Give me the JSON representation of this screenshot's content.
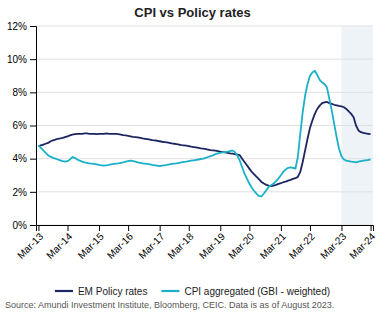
{
  "chart_data": {
    "type": "line",
    "title": "CPI vs Policy rates",
    "categories": [
      "Mar-13",
      null,
      null,
      null,
      null,
      null,
      null,
      null,
      null,
      null,
      null,
      null,
      "Mar-14",
      null,
      null,
      null,
      null,
      null,
      null,
      null,
      null,
      null,
      null,
      null,
      null,
      "Mar-15",
      null,
      null,
      null,
      null,
      null,
      null,
      null,
      null,
      null,
      null,
      null,
      "Mar-16",
      null,
      null,
      null,
      null,
      null,
      null,
      null,
      null,
      null,
      null,
      null,
      null,
      "Mar-17",
      null,
      null,
      null,
      null,
      null,
      null,
      null,
      null,
      null,
      null,
      null,
      "Mar-18",
      null,
      null,
      null,
      null,
      null,
      null,
      null,
      null,
      null,
      null,
      null,
      null,
      "Mar-19",
      null,
      null,
      null,
      null,
      null,
      null,
      null,
      null,
      null,
      null,
      null,
      "Mar-20",
      null,
      null,
      null,
      null,
      null,
      null,
      null,
      null,
      null,
      null,
      null,
      null,
      "Mar-21",
      null,
      null,
      null,
      null,
      null,
      null,
      null,
      null,
      null,
      null,
      null,
      "Mar-22",
      null,
      null,
      null,
      null,
      null,
      null,
      null,
      null,
      null,
      null,
      null,
      null,
      "Mar-23",
      null,
      null,
      null,
      null,
      null,
      null,
      null,
      null,
      null,
      null,
      null,
      "Mar-24"
    ],
    "series": [
      {
        "name": "EM Policy rates",
        "color": "#1c2461",
        "values": [
          4.75,
          4.8,
          4.85,
          4.9,
          4.95,
          5.05,
          5.1,
          5.15,
          5.2,
          5.22,
          5.25,
          5.3,
          5.35,
          5.4,
          5.45,
          5.48,
          5.5,
          5.5,
          5.5,
          5.52,
          5.52,
          5.5,
          5.5,
          5.5,
          5.48,
          5.5,
          5.5,
          5.5,
          5.52,
          5.5,
          5.5,
          5.5,
          5.5,
          5.48,
          5.45,
          5.42,
          5.4,
          5.38,
          5.35,
          5.32,
          5.3,
          5.28,
          5.25,
          5.22,
          5.2,
          5.18,
          5.15,
          5.12,
          5.1,
          5.08,
          5.05,
          5.02,
          5.0,
          4.98,
          4.95,
          4.92,
          4.9,
          4.88,
          4.85,
          4.82,
          4.8,
          4.78,
          4.75,
          4.72,
          4.7,
          4.68,
          4.65,
          4.62,
          4.6,
          4.58,
          4.55,
          4.52,
          4.5,
          4.48,
          4.45,
          4.42,
          4.4,
          4.38,
          4.35,
          4.32,
          4.3,
          4.28,
          4.25,
          4.22,
          4.0,
          3.8,
          3.6,
          3.4,
          3.2,
          3.05,
          2.9,
          2.75,
          2.6,
          2.5,
          2.42,
          2.38,
          2.35,
          2.38,
          2.42,
          2.48,
          2.52,
          2.58,
          2.62,
          2.68,
          2.72,
          2.78,
          2.82,
          2.9,
          3.2,
          3.8,
          4.5,
          5.2,
          5.85,
          6.3,
          6.7,
          7.0,
          7.2,
          7.35,
          7.4,
          7.42,
          7.35,
          7.3,
          7.25,
          7.22,
          7.18,
          7.15,
          7.1,
          7.0,
          6.85,
          6.7,
          6.5,
          6.0,
          5.7,
          5.6,
          5.55,
          5.52,
          5.5,
          5.48
        ]
      },
      {
        "name": "CPI aggregated (GBI - weighted)",
        "color": "#1ab0c8",
        "values": [
          4.8,
          4.65,
          4.5,
          4.35,
          4.2,
          4.12,
          4.05,
          4.0,
          3.95,
          3.9,
          3.85,
          3.82,
          3.85,
          3.95,
          4.1,
          4.05,
          3.95,
          3.88,
          3.82,
          3.78,
          3.75,
          3.72,
          3.7,
          3.68,
          3.65,
          3.62,
          3.6,
          3.58,
          3.6,
          3.62,
          3.65,
          3.68,
          3.7,
          3.72,
          3.75,
          3.78,
          3.82,
          3.85,
          3.88,
          3.85,
          3.82,
          3.78,
          3.75,
          3.72,
          3.7,
          3.68,
          3.65,
          3.62,
          3.6,
          3.58,
          3.55,
          3.58,
          3.6,
          3.62,
          3.65,
          3.68,
          3.7,
          3.72,
          3.75,
          3.78,
          3.8,
          3.82,
          3.85,
          3.88,
          3.9,
          3.92,
          3.95,
          3.98,
          4.0,
          4.05,
          4.1,
          4.15,
          4.2,
          4.28,
          4.32,
          4.35,
          4.38,
          4.4,
          4.42,
          4.45,
          4.5,
          4.4,
          4.2,
          3.9,
          3.5,
          3.1,
          2.8,
          2.5,
          2.25,
          2.05,
          1.88,
          1.75,
          1.72,
          1.9,
          2.1,
          2.3,
          2.4,
          2.5,
          2.65,
          2.8,
          3.0,
          3.2,
          3.35,
          3.45,
          3.48,
          3.45,
          3.4,
          4.1,
          5.5,
          6.8,
          7.8,
          8.5,
          9.0,
          9.2,
          9.3,
          9.05,
          8.75,
          8.6,
          8.5,
          8.3,
          7.6,
          6.9,
          6.1,
          5.3,
          4.6,
          4.15,
          3.95,
          3.88,
          3.85,
          3.82,
          3.8,
          3.78,
          3.82,
          3.85,
          3.88,
          3.9,
          3.92,
          3.95
        ]
      }
    ],
    "ylim": [
      0,
      12
    ],
    "yticks": [
      {
        "value": 0,
        "label": "0%"
      },
      {
        "value": 2,
        "label": "2%"
      },
      {
        "value": 4,
        "label": "4%"
      },
      {
        "value": 6,
        "label": "6%"
      },
      {
        "value": 8,
        "label": "8%"
      },
      {
        "value": 10,
        "label": "10%"
      },
      {
        "value": 12,
        "label": "12%"
      }
    ],
    "grid": true,
    "legend": "bottom",
    "annotations": [
      "Source: Amundi Investment Institute, Bloomberg, CEIC. Data is as of August 2023."
    ]
  }
}
